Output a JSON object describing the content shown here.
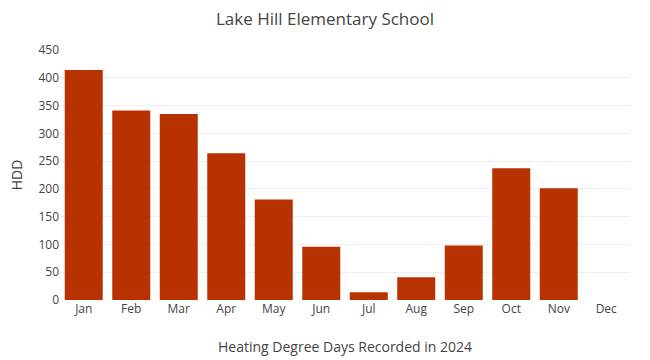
{
  "chart_data": {
    "type": "bar",
    "title": "Lake Hill Elementary School",
    "xlabel": "Heating Degree Days Recorded in 2024",
    "ylabel": "HDD",
    "categories": [
      "Jan",
      "Feb",
      "Mar",
      "Apr",
      "May",
      "Jun",
      "Jul",
      "Aug",
      "Sep",
      "Oct",
      "Nov",
      "Dec"
    ],
    "values": [
      414,
      341,
      335,
      264,
      181,
      96,
      14,
      41,
      98,
      237,
      201,
      0
    ],
    "color": "#b83200",
    "ylim": [
      0,
      450
    ],
    "yticks": [
      0,
      50,
      100,
      150,
      200,
      250,
      300,
      350,
      400,
      450
    ],
    "grid": true
  }
}
